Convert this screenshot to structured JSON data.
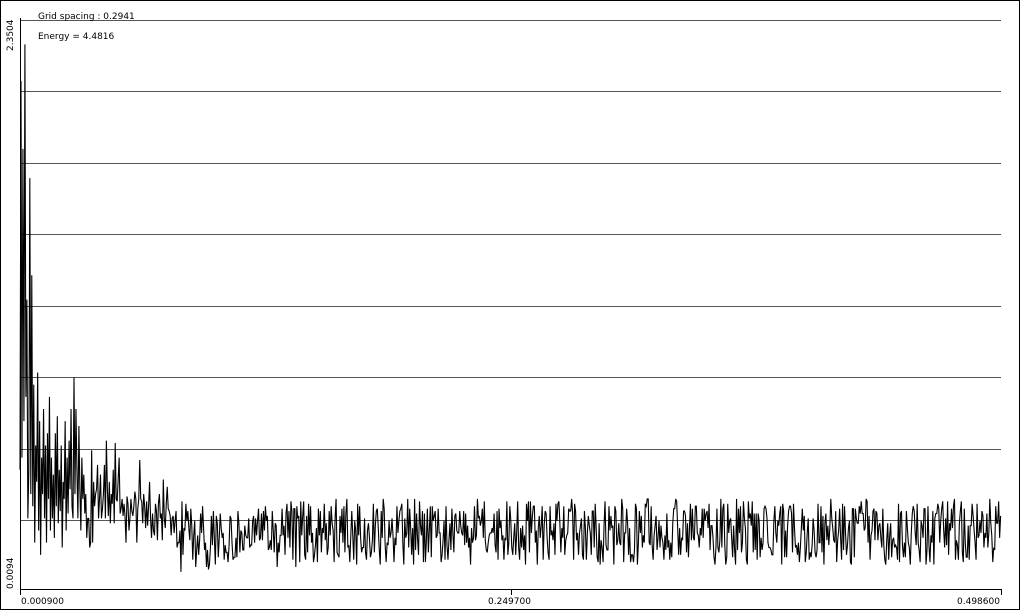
{
  "chart_data": {
    "type": "line",
    "info": {
      "grid_spacing": "Grid spacing : 0.2941",
      "energy": "Energy = 4.4816"
    },
    "y_tick_labels": [
      "2.3504",
      "0.0094"
    ],
    "x_tick_labels": [
      "0.000900",
      "0.249700",
      "0.498600"
    ],
    "xlim": [
      0.0009,
      0.4986
    ],
    "ylim": [
      0.0094,
      2.3504
    ],
    "grid": "horizontal",
    "grid_step": 0.2941,
    "colors": {
      "line": "#000000",
      "grid": "#555555",
      "axis": "#000000",
      "background": "#ffffff"
    },
    "series": [
      {
        "x_start": 0.0009,
        "x_step": 0.000498,
        "values": [
          0.5,
          2.1,
          0.55,
          1.82,
          0.7,
          2.25,
          0.8,
          1.2,
          0.3,
          0.5,
          1.7,
          0.4,
          1.3,
          0.35,
          0.85,
          0.2,
          0.6,
          0.45,
          0.9,
          0.25,
          0.7,
          0.15,
          0.55,
          0.4,
          0.75,
          0.3,
          0.6,
          0.2,
          0.65,
          0.38,
          0.8,
          0.25,
          0.55,
          0.3,
          0.48,
          0.22,
          0.65,
          0.35,
          0.72,
          0.28,
          0.5,
          0.33,
          0.6,
          0.18,
          0.45,
          0.38,
          0.7,
          0.25,
          0.55,
          0.32,
          0.62,
          0.42,
          0.75,
          0.35,
          0.3,
          0.88,
          0.4,
          0.75,
          0.5,
          0.3,
          0.68,
          0.42,
          0.25,
          0.55,
          0.38,
          0.48,
          0.32,
          0.4,
          0.22,
          0.3,
          0.3,
          0.18,
          0.2,
          0.58,
          0.2,
          0.45,
          0.35,
          0.4,
          0.42,
          0.52,
          0.3,
          0.38,
          0.48,
          0.3,
          0.34,
          0.4,
          0.52,
          0.3,
          0.62,
          0.42,
          0.31,
          0.45,
          0.28,
          0.4,
          0.36,
          0.5,
          0.28,
          0.61,
          0.38,
          0.37,
          0.46,
          0.55,
          0.32,
          0.34,
          0.38,
          0.31,
          0.36,
          0.31,
          0.2,
          0.39,
          0.36,
          0.25,
          0.3,
          0.38,
          0.33,
          0.31,
          0.35,
          0.41,
          0.38,
          0.2,
          0.34,
          0.38,
          0.54,
          0.38,
          0.37,
          0.28,
          0.4,
          0.35,
          0.26,
          0.37,
          0.27,
          0.35,
          0.45,
          0.3,
          0.22,
          0.32,
          0.25,
          0.23,
          0.36,
          0.33,
          0.21,
          0.36,
          0.4,
          0.3,
          0.32,
          0.21,
          0.46,
          0.3,
          0.26,
          0.36,
          0.43,
          0.34,
          0.33,
          0.31,
          0.23,
          0.3,
          0.31,
          0.24,
          0.29,
          0.33,
          0.18,
          0.2,
          0.2,
          0.25,
          0.08,
          0.37,
          0.15,
          0.26,
          0.25,
          0.36,
          0.29,
          0.33,
          0.26,
          0.21,
          0.34,
          0.27,
          0.13,
          0.23,
          0.29,
          0.1,
          0.17,
          0.23,
          0.15,
          0.21,
          0.32,
          0.24,
          0.35,
          0.26,
          0.17,
          0.2,
          0.1,
          0.17,
          0.09,
          0.11,
          0.18,
          0.31,
          0.19,
          0.33,
          0.22,
          0.11,
          0.31,
          0.28,
          0.14,
          0.22,
          0.32,
          0.26,
          0.22,
          0.24,
          0.13,
          0.19,
          0.16,
          0.16,
          0.12,
          0.19,
          0.31,
          0.3,
          0.2,
          0.13,
          0.14,
          0.14,
          0.22,
          0.14,
          0.33,
          0.28,
          0.16,
          0.25,
          0.24,
          0.17,
          0.17,
          0.27,
          0.23,
          0.22,
          0.22,
          0.3,
          0.18,
          0.19,
          0.19,
          0.29,
          0.31,
          0.2,
          0.3,
          0.23,
          0.29,
          0.34,
          0.21,
          0.22,
          0.32,
          0.21,
          0.33,
          0.25,
          0.35,
          0.29,
          0.31,
          0.17,
          0.18,
          0.21,
          0.17,
          0.33,
          0.25,
          0.16,
          0.28,
          0.27,
          0.1,
          0.2,
          0.16,
          0.23,
          0.23,
          0.34,
          0.23,
          0.27,
          0.15,
          0.32,
          0.36,
          0.22,
          0.33,
          0.18,
          0.37,
          0.33,
          0.13,
          0.34,
          0.34,
          0.1,
          0.35,
          0.3,
          0.31,
          0.12,
          0.37,
          0.23,
          0.31,
          0.37,
          0.15,
          0.13,
          0.31,
          0.16,
          0.36,
          0.23,
          0.35,
          0.2,
          0.24,
          0.12,
          0.15,
          0.19,
          0.26,
          0.12,
          0.34,
          0.23,
          0.33,
          0.16,
          0.26,
          0.24,
          0.36,
          0.21,
          0.28,
          0.15,
          0.18,
          0.33,
          0.23,
          0.35,
          0.28,
          0.25,
          0.12,
          0.3,
          0.38,
          0.16,
          0.15,
          0.14,
          0.31,
          0.24,
          0.34,
          0.2,
          0.35,
          0.16,
          0.32,
          0.38,
          0.18,
          0.19,
          0.12,
          0.23,
          0.33,
          0.23,
          0.13,
          0.29,
          0.25,
          0.11,
          0.36,
          0.23,
          0.35,
          0.22,
          0.16,
          0.18,
          0.18,
          0.3,
          0.16,
          0.13,
          0.25,
          0.28,
          0.22,
          0.14,
          0.16,
          0.21,
          0.36,
          0.16,
          0.27,
          0.33,
          0.34,
          0.26,
          0.17,
          0.11,
          0.33,
          0.22,
          0.38,
          0.34,
          0.19,
          0.12,
          0.2,
          0.19,
          0.29,
          0.22,
          0.24,
          0.3,
          0.23,
          0.12,
          0.22,
          0.19,
          0.35,
          0.24,
          0.29,
          0.33,
          0.34,
          0.36,
          0.2,
          0.11,
          0.3,
          0.22,
          0.24,
          0.38,
          0.18,
          0.34,
          0.26,
          0.15,
          0.26,
          0.11,
          0.38,
          0.17,
          0.32,
          0.22,
          0.15,
          0.37,
          0.27,
          0.23,
          0.33,
          0.12,
          0.32,
          0.12,
          0.21,
          0.34,
          0.16,
          0.25,
          0.35,
          0.14,
          0.35,
          0.29,
          0.31,
          0.33,
          0.22,
          0.23,
          0.34,
          0.24,
          0.24,
          0.12,
          0.15,
          0.21,
          0.29,
          0.13,
          0.35,
          0.19,
          0.13,
          0.21,
          0.28,
          0.17,
          0.34,
          0.24,
          0.16,
          0.31,
          0.32,
          0.25,
          0.24,
          0.24,
          0.33,
          0.27,
          0.24,
          0.23,
          0.33,
          0.19,
          0.32,
          0.2,
          0.27,
          0.18,
          0.22,
          0.11,
          0.26,
          0.2,
          0.22,
          0.35,
          0.21,
          0.23,
          0.38,
          0.3,
          0.31,
          0.27,
          0.29,
          0.34,
          0.22,
          0.37,
          0.21,
          0.17,
          0.16,
          0.2,
          0.23,
          0.24,
          0.24,
          0.26,
          0.24,
          0.32,
          0.19,
          0.16,
          0.33,
          0.13,
          0.34,
          0.26,
          0.29,
          0.21,
          0.23,
          0.13,
          0.22,
          0.21,
          0.37,
          0.15,
          0.2,
          0.35,
          0.29,
          0.18,
          0.15,
          0.22,
          0.28,
          0.15,
          0.24,
          0.37,
          0.18,
          0.13,
          0.26,
          0.18,
          0.27,
          0.17,
          0.23,
          0.11,
          0.36,
          0.29,
          0.37,
          0.16,
          0.37,
          0.24,
          0.31,
          0.35,
          0.35,
          0.2,
          0.25,
          0.11,
          0.26,
          0.31,
          0.22,
          0.27,
          0.35,
          0.13,
          0.27,
          0.33,
          0.32,
          0.22,
          0.16,
          0.13,
          0.35,
          0.23,
          0.25,
          0.21,
          0.28,
          0.15,
          0.36,
          0.29,
          0.36,
          0.37,
          0.28,
          0.16,
          0.26,
          0.22,
          0.35,
          0.15,
          0.21,
          0.23,
          0.24,
          0.34,
          0.33,
          0.33,
          0.38,
          0.32,
          0.13,
          0.36,
          0.33,
          0.21,
          0.24,
          0.15,
          0.24,
          0.27,
          0.3,
          0.15,
          0.13,
          0.33,
          0.26,
          0.13,
          0.24,
          0.31,
          0.27,
          0.24,
          0.15,
          0.33,
          0.33,
          0.18,
          0.36,
          0.26,
          0.14,
          0.12,
          0.28,
          0.11,
          0.21,
          0.18,
          0.12,
          0.27,
          0.37,
          0.19,
          0.17,
          0.17,
          0.35,
          0.25,
          0.31,
          0.26,
          0.27,
          0.11,
          0.35,
          0.33,
          0.19,
          0.21,
          0.28,
          0.2,
          0.19,
          0.38,
          0.34,
          0.12,
          0.24,
          0.24,
          0.34,
          0.28,
          0.15,
          0.26,
          0.12,
          0.15,
          0.15,
          0.12,
          0.17,
          0.36,
          0.34,
          0.11,
          0.2,
          0.33,
          0.24,
          0.31,
          0.18,
          0.23,
          0.2,
          0.36,
          0.35,
          0.38,
          0.38,
          0.2,
          0.19,
          0.35,
          0.19,
          0.13,
          0.23,
          0.27,
          0.31,
          0.17,
          0.22,
          0.29,
          0.18,
          0.27,
          0.22,
          0.2,
          0.13,
          0.23,
          0.17,
          0.32,
          0.18,
          0.21,
          0.13,
          0.2,
          0.14,
          0.28,
          0.34,
          0.34,
          0.38,
          0.37,
          0.26,
          0.15,
          0.26,
          0.15,
          0.22,
          0.21,
          0.33,
          0.33,
          0.31,
          0.16,
          0.28,
          0.14,
          0.26,
          0.36,
          0.21,
          0.34,
          0.22,
          0.21,
          0.35,
          0.35,
          0.24,
          0.23,
          0.18,
          0.26,
          0.23,
          0.34,
          0.22,
          0.34,
          0.29,
          0.32,
          0.33,
          0.26,
          0.36,
          0.17,
          0.27,
          0.27,
          0.22,
          0.14,
          0.11,
          0.18,
          0.34,
          0.18,
          0.16,
          0.21,
          0.38,
          0.18,
          0.34,
          0.36,
          0.19,
          0.11,
          0.14,
          0.36,
          0.24,
          0.29,
          0.3,
          0.22,
          0.14,
          0.27,
          0.17,
          0.11,
          0.38,
          0.17,
          0.34,
          0.24,
          0.35,
          0.16,
          0.2,
          0.37,
          0.3,
          0.26,
          0.13,
          0.11,
          0.37,
          0.3,
          0.32,
          0.27,
          0.37,
          0.16,
          0.32,
          0.17,
          0.32,
          0.13,
          0.32,
          0.29,
          0.14,
          0.22,
          0.17,
          0.2,
          0.34,
          0.35,
          0.34,
          0.3,
          0.2,
          0.18,
          0.18,
          0.17,
          0.15,
          0.15,
          0.29,
          0.35,
          0.24,
          0.2,
          0.29,
          0.27,
          0.32,
          0.35,
          0.11,
          0.36,
          0.33,
          0.14,
          0.25,
          0.14,
          0.27,
          0.33,
          0.35,
          0.35,
          0.32,
          0.16,
          0.36,
          0.26,
          0.18,
          0.19,
          0.15,
          0.2,
          0.12,
          0.18,
          0.26,
          0.34,
          0.25,
          0.31,
          0.12,
          0.16,
          0.24,
          0.3,
          0.13,
          0.16,
          0.14,
          0.19,
          0.3,
          0.25,
          0.16,
          0.14,
          0.17,
          0.36,
          0.2,
          0.2,
          0.35,
          0.16,
          0.31,
          0.11,
          0.28,
          0.32,
          0.21,
          0.27,
          0.19,
          0.26,
          0.38,
          0.3,
          0.26,
          0.21,
          0.2,
          0.33,
          0.12,
          0.21,
          0.25,
          0.34,
          0.22,
          0.13,
          0.36,
          0.17,
          0.35,
          0.24,
          0.15,
          0.19,
          0.26,
          0.29,
          0.12,
          0.11,
          0.34,
          0.34,
          0.14,
          0.34,
          0.3,
          0.28,
          0.28,
          0.35,
          0.32,
          0.37,
          0.32,
          0.32,
          0.25,
          0.26,
          0.38,
          0.37,
          0.2,
          0.31,
          0.13,
          0.23,
          0.25,
          0.33,
          0.34,
          0.21,
          0.33,
          0.32,
          0.21,
          0.27,
          0.28,
          0.22,
          0.18,
          0.34,
          0.19,
          0.13,
          0.11,
          0.21,
          0.28,
          0.13,
          0.23,
          0.28,
          0.14,
          0.21,
          0.22,
          0.18,
          0.19,
          0.18,
          0.13,
          0.36,
          0.12,
          0.32,
          0.33,
          0.19,
          0.14,
          0.2,
          0.14,
          0.33,
          0.26,
          0.2,
          0.18,
          0.11,
          0.24,
          0.32,
          0.35,
          0.33,
          0.24,
          0.19,
          0.36,
          0.2,
          0.17,
          0.12,
          0.29,
          0.27,
          0.22,
          0.34,
          0.34,
          0.11,
          0.17,
          0.35,
          0.19,
          0.12,
          0.23,
          0.2,
          0.33,
          0.11,
          0.3,
          0.32,
          0.32,
          0.36,
          0.34,
          0.2,
          0.29,
          0.34,
          0.37,
          0.25,
          0.18,
          0.3,
          0.19,
          0.37,
          0.15,
          0.28,
          0.25,
          0.34,
          0.26,
          0.35,
          0.38,
          0.13,
          0.21,
          0.19,
          0.13,
          0.28,
          0.33,
          0.37,
          0.16,
          0.12,
          0.34,
          0.2,
          0.14,
          0.14,
          0.27,
          0.13,
          0.27,
          0.27,
          0.36,
          0.31,
          0.25,
          0.2,
          0.13,
          0.36,
          0.22,
          0.23,
          0.29,
          0.24,
          0.33,
          0.31,
          0.18,
          0.24,
          0.22,
          0.32,
          0.18,
          0.24,
          0.38,
          0.28,
          0.23,
          0.12,
          0.18,
          0.17,
          0.35,
          0.28,
          0.28,
          0.37,
          0.22,
          0.31
        ]
      }
    ]
  }
}
